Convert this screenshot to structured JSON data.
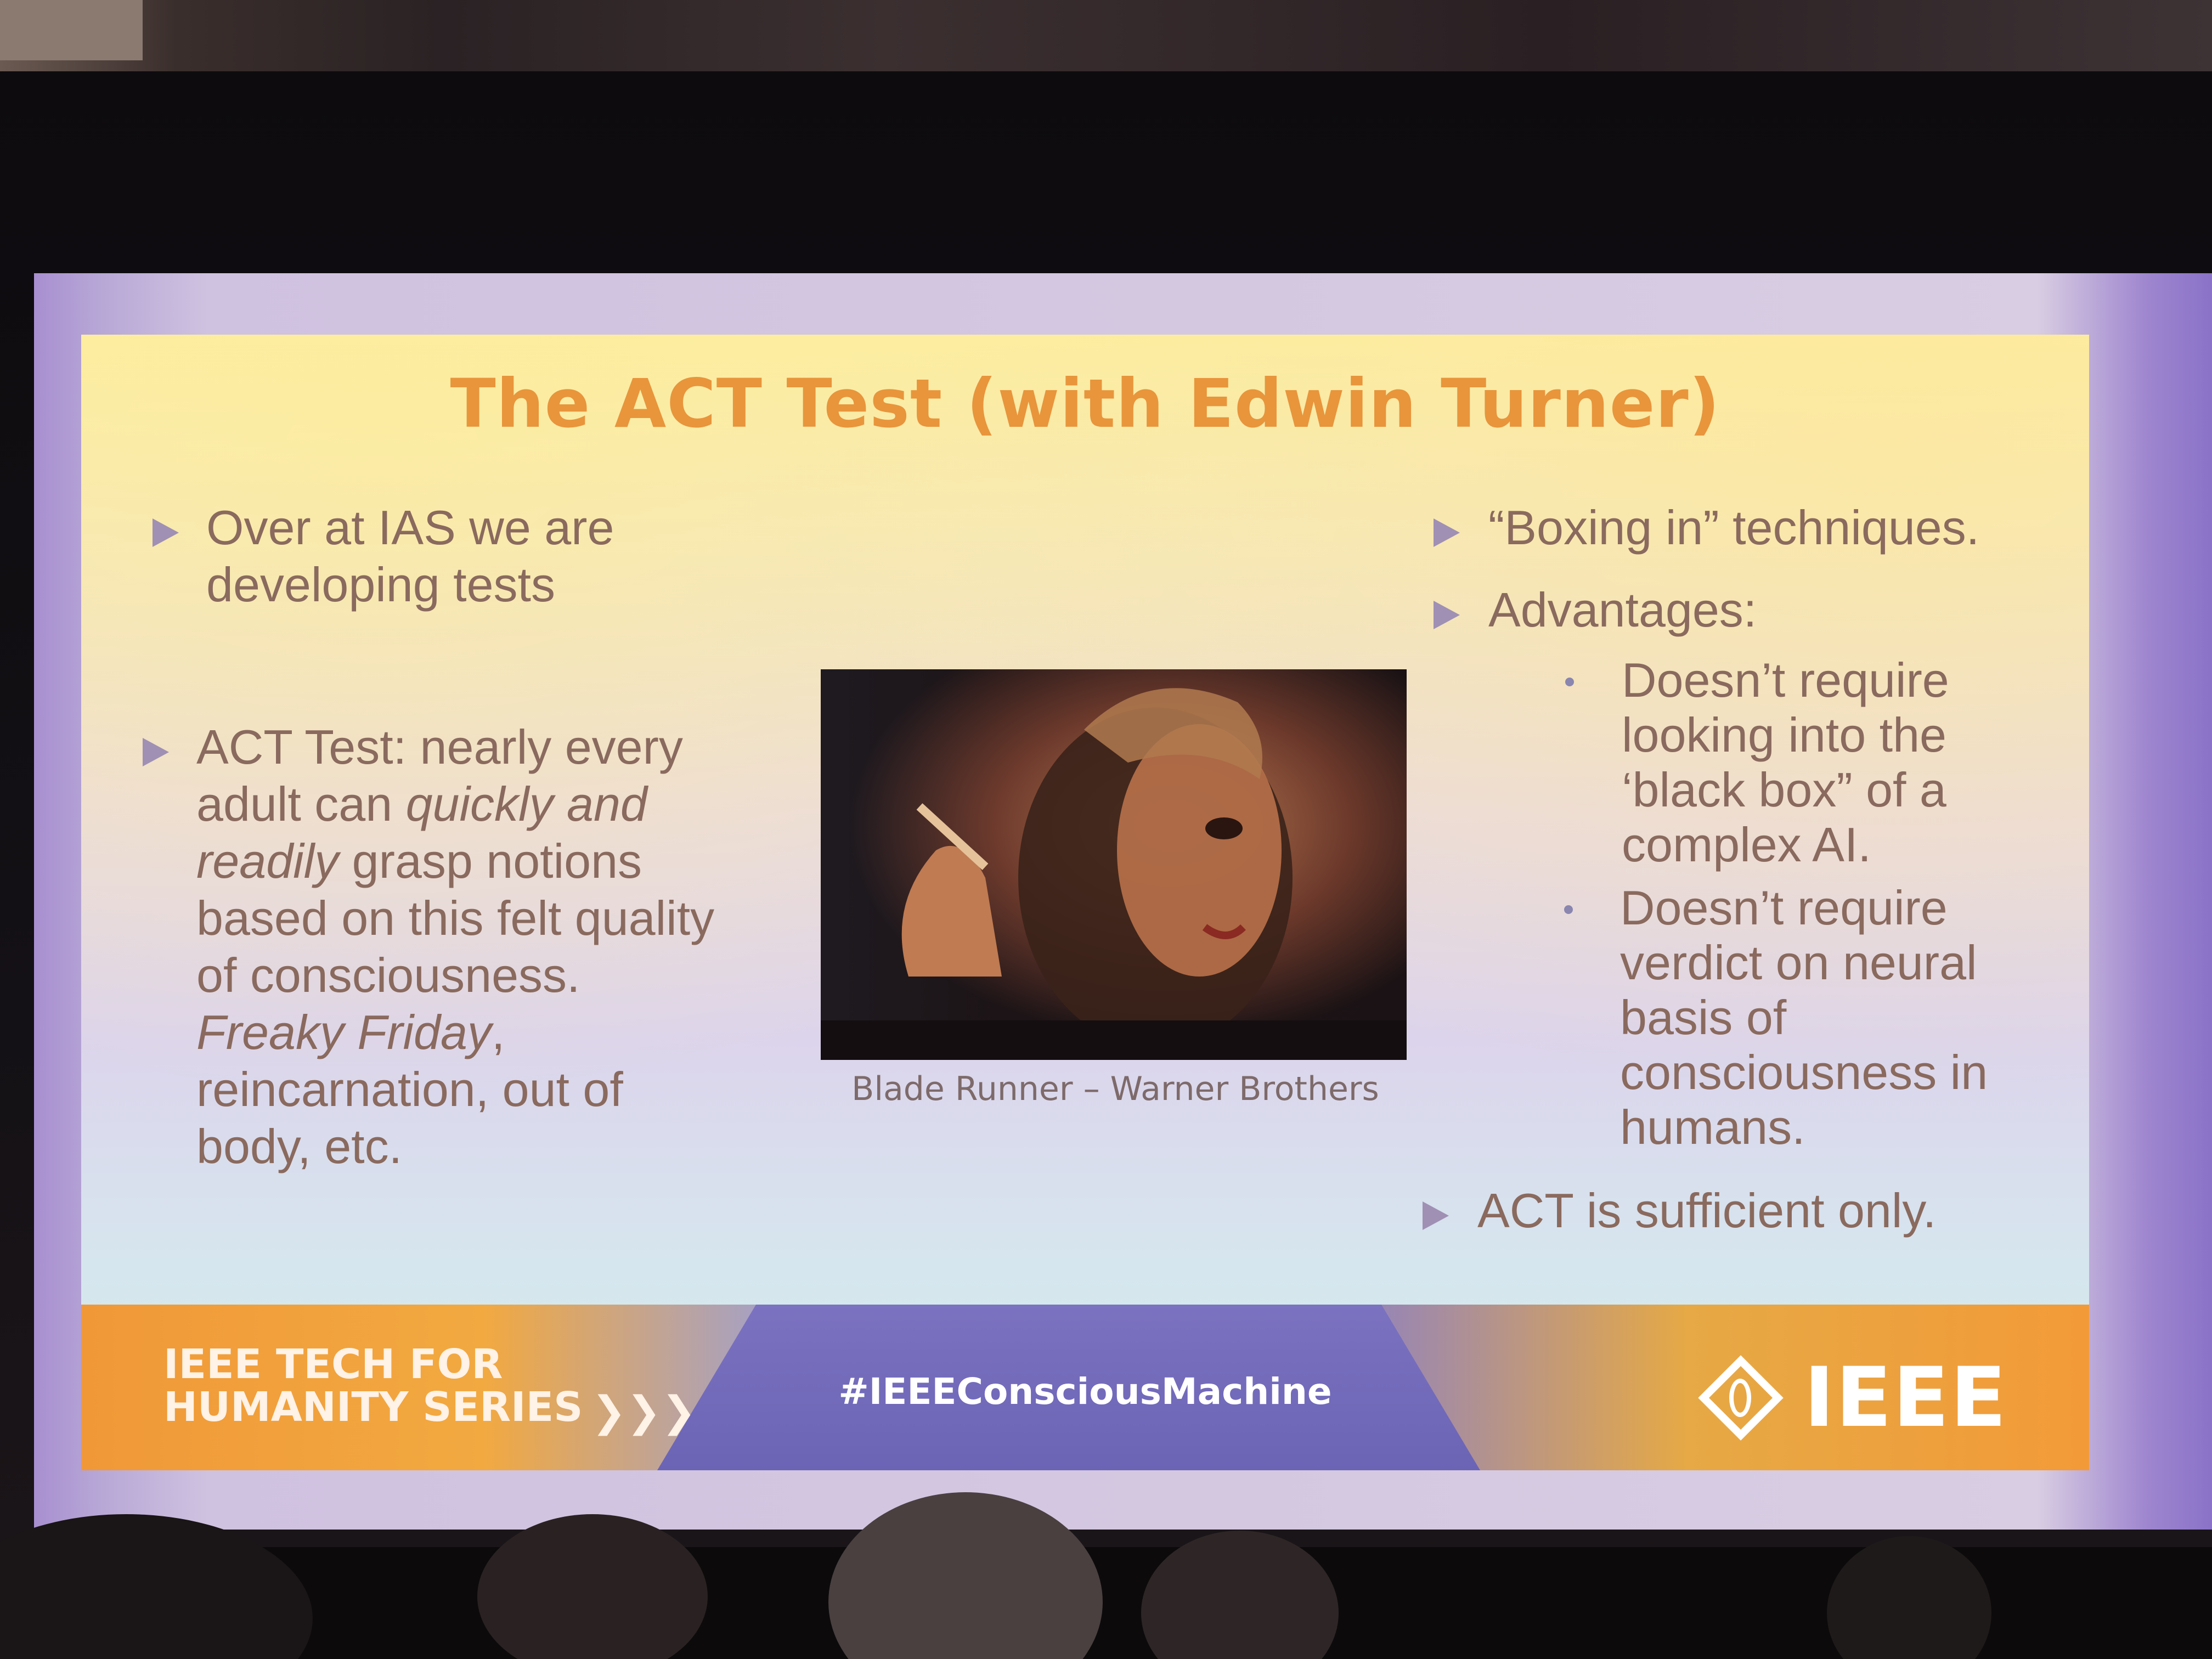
{
  "slide": {
    "title": "The ACT Test (with Edwin Turner)",
    "left_bullets": [
      {
        "lines": [
          "Over at IAS we are",
          "developing tests"
        ]
      },
      {
        "lines": [
          "ACT Test: nearly every",
          "adult can ",
          "quickly and",
          "readily",
          " grasp notions",
          "based on this felt quality",
          "of consciousness.",
          "Freaky Friday",
          ",",
          "reincarnation, out of",
          "body, etc."
        ]
      }
    ],
    "image_caption": "Blade Runner – Warner Brothers",
    "right_bullets": [
      {
        "text": "“Boxing in” techniques."
      },
      {
        "text": "Advantages:"
      }
    ],
    "sub_bullets": [
      {
        "lines": [
          "Doesn’t require",
          "looking into the",
          "‘black box” of a",
          "complex AI."
        ]
      },
      {
        "lines": [
          "Doesn’t require",
          "verdict on neural",
          "basis of",
          "consciousness in",
          "humans."
        ]
      }
    ],
    "last_bullet": "ACT is sufficient only."
  },
  "footer": {
    "series_line1": "IEEE TECH FOR",
    "series_line2": "HUMANITY SERIES",
    "chevrons": "❯❯❯",
    "hashtag": "#IEEEConsciousMachine",
    "logo_text": "IEEE"
  },
  "colors": {
    "title": "#e8953c",
    "body_text": "#8a6a5e",
    "arrow": "#a090b4",
    "footer_orange": "#f09838",
    "footer_purple": "#7b72c0"
  },
  "icons": [
    "arrow-bullet-icon",
    "dot-bullet-icon",
    "ieee-diamond-logo-icon"
  ]
}
